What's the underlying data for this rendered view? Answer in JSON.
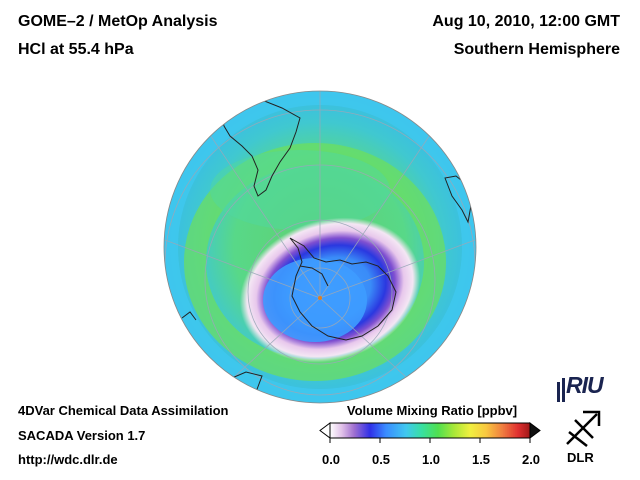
{
  "header": {
    "title_line1": "GOME–2 / MetOp Analysis",
    "title_line2": "HCl at 55.4 hPa",
    "date": "Aug 10, 2010, 12:00 GMT",
    "region": "Southern Hemisphere"
  },
  "footer": {
    "line1": "4DVar Chemical Data Assimilation",
    "line2": "SACADA Version 1.7",
    "line3": "http://wdc.dlr.de"
  },
  "colorbar": {
    "title": "Volume Mixing Ratio [ppbv]",
    "ticks": [
      "0.0",
      "0.5",
      "1.0",
      "1.5",
      "2.0"
    ],
    "colors": [
      "#ffffff",
      "#e0c0e8",
      "#a070d0",
      "#3030e8",
      "#3a8cff",
      "#40c8f0",
      "#38e0a0",
      "#50e050",
      "#a8e838",
      "#f0f040",
      "#f8c840",
      "#f08040",
      "#e03030",
      "#a01818"
    ]
  },
  "logos": {
    "riu": "RIU",
    "dlr": "DLR"
  }
}
